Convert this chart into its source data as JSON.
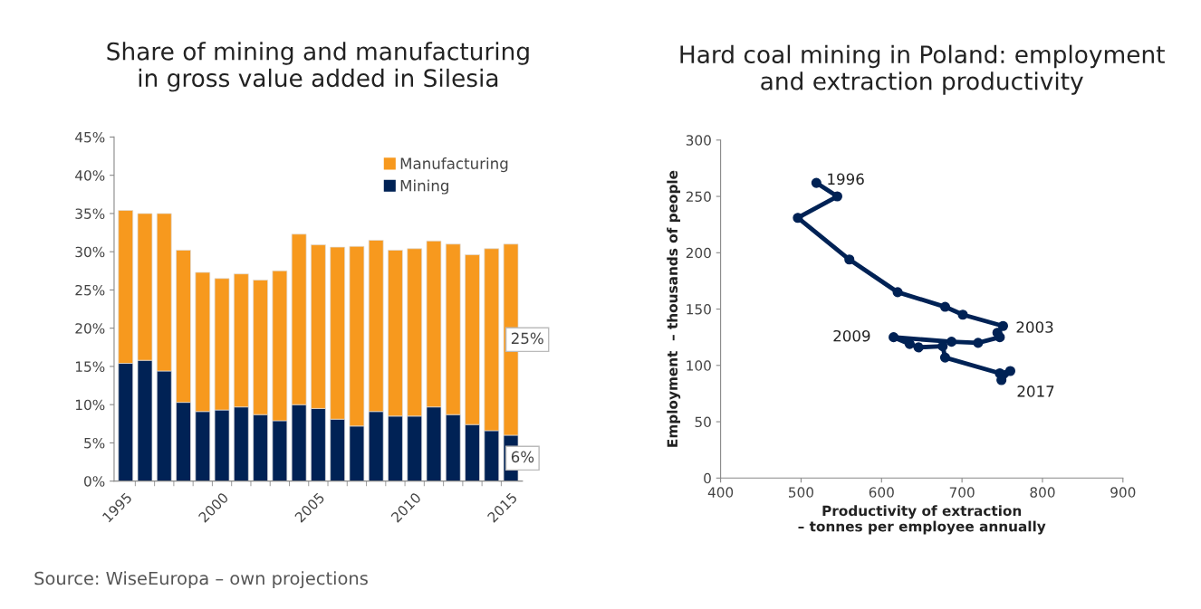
{
  "chart_data": [
    {
      "type": "bar",
      "title": "Share of mining and manufacturing\nin gross value added in Silesia",
      "categories": [
        "1995",
        null,
        null,
        null,
        null,
        "2000",
        null,
        null,
        null,
        null,
        "2005",
        null,
        null,
        null,
        null,
        "2010",
        null,
        null,
        null,
        null,
        "2015"
      ],
      "stacked": true,
      "series": [
        {
          "name": "Mining",
          "color": "#002255",
          "values": [
            15.4,
            15.8,
            14.4,
            10.3,
            9.1,
            9.3,
            9.7,
            8.7,
            7.9,
            10.0,
            9.5,
            8.1,
            7.2,
            9.1,
            8.5,
            8.5,
            9.7,
            8.7,
            7.4,
            6.6,
            6
          ],
          "value_labels": [
            null,
            null,
            null,
            null,
            null,
            null,
            null,
            null,
            null,
            null,
            null,
            null,
            null,
            null,
            null,
            null,
            null,
            null,
            null,
            null,
            "6%"
          ]
        },
        {
          "name": "Manufacturing",
          "color": "#f7991e",
          "values": [
            20.0,
            19.2,
            20.6,
            19.9,
            18.2,
            17.2,
            17.4,
            17.6,
            19.6,
            22.3,
            21.4,
            22.5,
            23.5,
            22.4,
            21.7,
            21.9,
            21.7,
            22.3,
            22.2,
            23.8,
            25
          ],
          "value_labels": [
            null,
            null,
            null,
            null,
            null,
            null,
            null,
            null,
            null,
            null,
            null,
            null,
            null,
            null,
            null,
            null,
            null,
            null,
            null,
            null,
            "25%"
          ]
        }
      ],
      "ylim": [
        0,
        45
      ],
      "yticks": [
        {
          "value": 0,
          "label": "0%"
        },
        {
          "value": 5,
          "label": "5%"
        },
        {
          "value": 10,
          "label": "10%"
        },
        {
          "value": 15,
          "label": "15%"
        },
        {
          "value": 20,
          "label": "20%"
        },
        {
          "value": 25,
          "label": "25%"
        },
        {
          "value": 30,
          "label": "30%"
        },
        {
          "value": 35,
          "label": "35%"
        },
        {
          "value": 40,
          "label": "40%"
        },
        {
          "value": 45,
          "label": "45%"
        }
      ],
      "legend": "top right",
      "grid": false,
      "annotations": [
        "Source: WiseEuropa – own projections"
      ]
    },
    {
      "type": "line",
      "title": "Hard coal mining in Poland: employment\nand extraction productivity",
      "xlabel": "Productivity of extraction\n– tonnes per employee annually",
      "ylabel": "Employment  – thousands of people",
      "series": [
        {
          "color": "#002255",
          "x": [
            519,
            545,
            496,
            560,
            620,
            679,
            701,
            751,
            744,
            747,
            720,
            687,
            615,
            635,
            646,
            676,
            679,
            747,
            760,
            749
          ],
          "values": [
            262,
            250,
            231,
            194,
            165,
            152,
            145,
            135,
            129,
            125,
            120,
            121,
            125,
            119,
            116,
            117,
            107,
            93,
            95,
            87
          ]
        }
      ],
      "marker": "circle",
      "line_style": "solid",
      "xlim": [
        400,
        900
      ],
      "xticks": [
        400,
        500,
        600,
        700,
        800,
        900
      ],
      "ylim": [
        0,
        300
      ],
      "yticks": [
        0,
        50,
        100,
        150,
        200,
        250,
        300
      ],
      "grid": false,
      "legend": false,
      "annotations": [
        {
          "text": "1996",
          "x": 519,
          "y": 262
        },
        {
          "text": "2003",
          "x": 751,
          "y": 135
        },
        {
          "text": "2009",
          "x": 615,
          "y": 125
        },
        {
          "text": "2017",
          "x": 749,
          "y": 87
        }
      ]
    }
  ]
}
